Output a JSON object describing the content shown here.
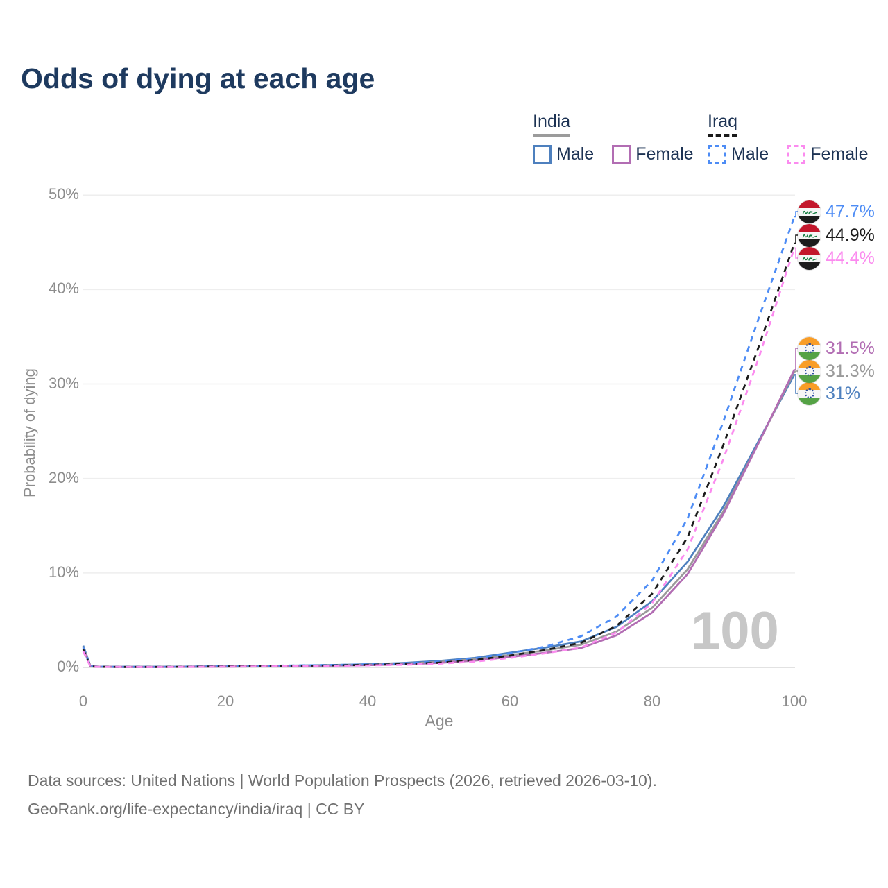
{
  "title": "Odds of dying at each age",
  "watermark": "100",
  "legend": {
    "groups": [
      {
        "country": "India",
        "underline_style": "solid",
        "underline_color": "#9b9b9b",
        "items": [
          {
            "label": "Male",
            "color": "#4e80be",
            "dash": false
          },
          {
            "label": "Female",
            "color": "#b26db3",
            "dash": false
          }
        ]
      },
      {
        "country": "Iraq",
        "underline_style": "dashed",
        "underline_color": "#1a1a1a",
        "items": [
          {
            "label": "Male",
            "color": "#4d8cf5",
            "dash": true
          },
          {
            "label": "Female",
            "color": "#fb8bef",
            "dash": true
          }
        ]
      }
    ]
  },
  "chart_data": {
    "type": "line",
    "title": "Odds of dying at each age",
    "xlabel": "Age",
    "ylabel": "Probability of dying",
    "xlim": [
      0,
      100
    ],
    "ylim_percent": [
      0,
      50
    ],
    "grid": "horizontal",
    "x_ticks": [
      {
        "label": "0",
        "value": 0
      },
      {
        "label": "20",
        "value": 20
      },
      {
        "label": "40",
        "value": 40
      },
      {
        "label": "60",
        "value": 60
      },
      {
        "label": "80",
        "value": 80
      },
      {
        "label": "100",
        "value": 100
      }
    ],
    "y_ticks": [
      {
        "label": "0%",
        "value": 0
      },
      {
        "label": "10%",
        "value": 10
      },
      {
        "label": "20%",
        "value": 20
      },
      {
        "label": "30%",
        "value": 30
      },
      {
        "label": "40%",
        "value": 40
      },
      {
        "label": "50%",
        "value": 50
      }
    ],
    "series": [
      {
        "key": "india_male",
        "name": "India Male",
        "country": "India",
        "sex": "Male",
        "color": "#4e80be",
        "dash": false,
        "flag": "india",
        "end_label": "31%",
        "points": [
          [
            0,
            2.3
          ],
          [
            1,
            0.15
          ],
          [
            2,
            0.09
          ],
          [
            5,
            0.07
          ],
          [
            10,
            0.07
          ],
          [
            15,
            0.09
          ],
          [
            20,
            0.13
          ],
          [
            25,
            0.16
          ],
          [
            30,
            0.2
          ],
          [
            35,
            0.26
          ],
          [
            40,
            0.34
          ],
          [
            45,
            0.47
          ],
          [
            50,
            0.68
          ],
          [
            55,
            1.0
          ],
          [
            60,
            1.55
          ],
          [
            65,
            2.1
          ],
          [
            70,
            2.75
          ],
          [
            75,
            4.3
          ],
          [
            80,
            7.0
          ],
          [
            85,
            11.2
          ],
          [
            90,
            17.0
          ],
          [
            95,
            24.0
          ],
          [
            100,
            31.0
          ]
        ]
      },
      {
        "key": "india_total",
        "name": "India Both sexes",
        "country": "India",
        "sex": "Both",
        "color": "#9a9a9a",
        "dash": false,
        "flag": "india",
        "end_label": "31.3%",
        "points": [
          [
            0,
            2.15
          ],
          [
            1,
            0.14
          ],
          [
            2,
            0.08
          ],
          [
            5,
            0.06
          ],
          [
            10,
            0.06
          ],
          [
            15,
            0.08
          ],
          [
            20,
            0.11
          ],
          [
            25,
            0.14
          ],
          [
            30,
            0.17
          ],
          [
            35,
            0.22
          ],
          [
            40,
            0.29
          ],
          [
            45,
            0.4
          ],
          [
            50,
            0.58
          ],
          [
            55,
            0.86
          ],
          [
            60,
            1.3
          ],
          [
            65,
            1.8
          ],
          [
            70,
            2.4
          ],
          [
            75,
            3.8
          ],
          [
            80,
            6.3
          ],
          [
            85,
            10.4
          ],
          [
            90,
            16.5
          ],
          [
            95,
            23.8
          ],
          [
            100,
            31.3
          ]
        ]
      },
      {
        "key": "india_female",
        "name": "India Female",
        "country": "India",
        "sex": "Female",
        "color": "#b26db3",
        "dash": false,
        "flag": "india",
        "end_label": "31.5%",
        "points": [
          [
            0,
            2.0
          ],
          [
            1,
            0.13
          ],
          [
            2,
            0.07
          ],
          [
            5,
            0.05
          ],
          [
            10,
            0.05
          ],
          [
            15,
            0.07
          ],
          [
            20,
            0.09
          ],
          [
            25,
            0.11
          ],
          [
            30,
            0.14
          ],
          [
            35,
            0.18
          ],
          [
            40,
            0.24
          ],
          [
            45,
            0.33
          ],
          [
            50,
            0.48
          ],
          [
            55,
            0.72
          ],
          [
            60,
            1.1
          ],
          [
            65,
            1.55
          ],
          [
            70,
            2.05
          ],
          [
            75,
            3.4
          ],
          [
            80,
            5.8
          ],
          [
            85,
            9.9
          ],
          [
            90,
            16.2
          ],
          [
            95,
            23.8
          ],
          [
            100,
            31.5
          ]
        ]
      },
      {
        "key": "iraq_male",
        "name": "Iraq Male",
        "country": "Iraq",
        "sex": "Male",
        "color": "#4d8cf5",
        "dash": true,
        "flag": "iraq",
        "end_label": "47.7%",
        "points": [
          [
            0,
            2.1
          ],
          [
            1,
            0.12
          ],
          [
            2,
            0.08
          ],
          [
            5,
            0.06
          ],
          [
            10,
            0.06
          ],
          [
            15,
            0.08
          ],
          [
            20,
            0.13
          ],
          [
            25,
            0.17
          ],
          [
            30,
            0.21
          ],
          [
            35,
            0.26
          ],
          [
            40,
            0.32
          ],
          [
            45,
            0.42
          ],
          [
            50,
            0.6
          ],
          [
            55,
            0.95
          ],
          [
            60,
            1.5
          ],
          [
            65,
            2.2
          ],
          [
            70,
            3.3
          ],
          [
            75,
            5.4
          ],
          [
            80,
            9.2
          ],
          [
            85,
            15.8
          ],
          [
            90,
            26.0
          ],
          [
            95,
            37.0
          ],
          [
            100,
            47.7
          ]
        ]
      },
      {
        "key": "iraq_total",
        "name": "Iraq Both sexes",
        "country": "Iraq",
        "sex": "Both",
        "color": "#1c1c1c",
        "dash": true,
        "flag": "iraq",
        "end_label": "44.9%",
        "points": [
          [
            0,
            1.9
          ],
          [
            1,
            0.11
          ],
          [
            2,
            0.07
          ],
          [
            5,
            0.05
          ],
          [
            10,
            0.05
          ],
          [
            15,
            0.07
          ],
          [
            20,
            0.11
          ],
          [
            25,
            0.14
          ],
          [
            30,
            0.17
          ],
          [
            35,
            0.21
          ],
          [
            40,
            0.27
          ],
          [
            45,
            0.35
          ],
          [
            50,
            0.5
          ],
          [
            55,
            0.78
          ],
          [
            60,
            1.25
          ],
          [
            65,
            1.85
          ],
          [
            70,
            2.6
          ],
          [
            75,
            4.4
          ],
          [
            80,
            7.8
          ],
          [
            85,
            13.8
          ],
          [
            90,
            23.5
          ],
          [
            95,
            34.0
          ],
          [
            100,
            44.9
          ]
        ]
      },
      {
        "key": "iraq_female",
        "name": "Iraq Female",
        "country": "Iraq",
        "sex": "Female",
        "color": "#fb8bef",
        "dash": true,
        "flag": "iraq",
        "end_label": "44.4%",
        "points": [
          [
            0,
            1.7
          ],
          [
            1,
            0.1
          ],
          [
            2,
            0.06
          ],
          [
            5,
            0.05
          ],
          [
            10,
            0.04
          ],
          [
            15,
            0.06
          ],
          [
            20,
            0.08
          ],
          [
            25,
            0.1
          ],
          [
            30,
            0.13
          ],
          [
            35,
            0.16
          ],
          [
            40,
            0.21
          ],
          [
            45,
            0.28
          ],
          [
            50,
            0.4
          ],
          [
            55,
            0.62
          ],
          [
            60,
            1.0
          ],
          [
            65,
            1.5
          ],
          [
            70,
            2.1
          ],
          [
            75,
            3.7
          ],
          [
            80,
            6.8
          ],
          [
            85,
            12.5
          ],
          [
            90,
            22.0
          ],
          [
            95,
            32.8
          ],
          [
            100,
            44.4
          ]
        ]
      }
    ]
  },
  "footer": {
    "line1": "Data sources: United Nations | World Population Prospects (2026, retrieved 2026-03-10).",
    "line2": "GeoRank.org/life-expectancy/india/iraq | CC BY"
  }
}
